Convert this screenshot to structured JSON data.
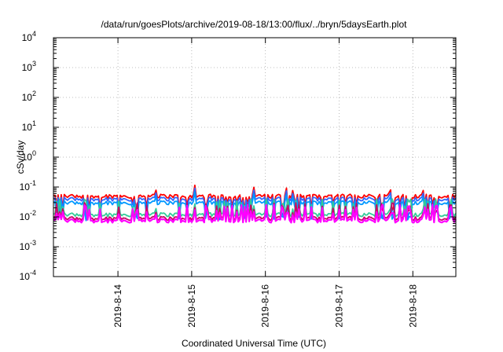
{
  "chart_data": {
    "type": "line",
    "title": "/data/run/goesPlots/archive/2019-08-18/13:00/flux/../bryn/5daysEarth.plot",
    "xlabel": "Coordinated Universal Time (UTC)",
    "ylabel": "cSv/day",
    "yscale": "log",
    "ylim": [
      0.0001,
      10000
    ],
    "y_ticks": [
      {
        "base": "10",
        "exp": "-4",
        "value": 0.0001
      },
      {
        "base": "10",
        "exp": "-3",
        "value": 0.001
      },
      {
        "base": "10",
        "exp": "-2",
        "value": 0.01
      },
      {
        "base": "10",
        "exp": "-1",
        "value": 0.1
      },
      {
        "base": "10",
        "exp": "0",
        "value": 1
      },
      {
        "base": "10",
        "exp": "1",
        "value": 10
      },
      {
        "base": "10",
        "exp": "2",
        "value": 100
      },
      {
        "base": "10",
        "exp": "3",
        "value": 1000
      },
      {
        "base": "10",
        "exp": "4",
        "value": 10000
      }
    ],
    "xlim": [
      "2019-08-13T03:00",
      "2019-08-18T14:00"
    ],
    "x_ticks": [
      {
        "label": "2019-8-14",
        "value": "2019-08-14"
      },
      {
        "label": "2019-8-15",
        "value": "2019-08-15"
      },
      {
        "label": "2019-8-16",
        "value": "2019-08-16"
      },
      {
        "label": "2019-8-17",
        "value": "2019-08-17"
      },
      {
        "label": "2019-8-18",
        "value": "2019-08-18"
      }
    ],
    "grid": true,
    "series": [
      {
        "color": "#ff0000",
        "base": 0.05,
        "spike_min": 0.02
      },
      {
        "color": "#3366ff",
        "base": 0.04,
        "spike_min": 0.01
      },
      {
        "color": "#0099ff",
        "base": 0.03,
        "spike_min": 0.009
      },
      {
        "color": "#33cc99",
        "base": 0.012,
        "spike_min": 0.008
      },
      {
        "color": "#cc0066",
        "base": 0.009,
        "spike_min": 0.007
      },
      {
        "color": "#ff00ff",
        "base": 0.0075,
        "spike_min": 0.006
      }
    ]
  }
}
